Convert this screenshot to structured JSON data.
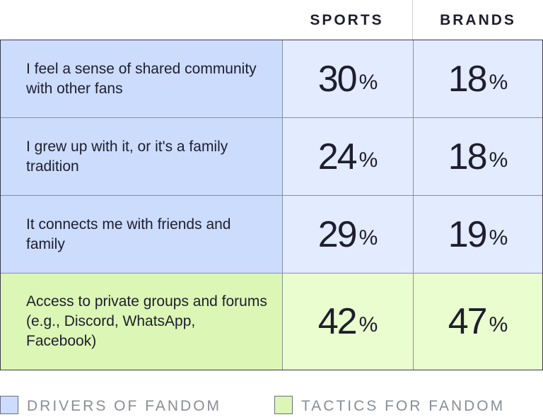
{
  "chart_data": {
    "type": "table",
    "columns": [
      "SPORTS",
      "BRANDS"
    ],
    "value_suffix": "%",
    "rows": [
      {
        "label": "I feel a sense of shared community with other fans",
        "sports": 30,
        "brands": 18,
        "group": "drivers"
      },
      {
        "label": "I grew up with it, or it's a family tradition",
        "sports": 24,
        "brands": 18,
        "group": "drivers"
      },
      {
        "label": "It connects me with friends and family",
        "sports": 29,
        "brands": 19,
        "group": "drivers"
      },
      {
        "label": "Access to private groups and forums (e.g., Discord, WhatsApp, Facebook)",
        "sports": 42,
        "brands": 47,
        "group": "tactics"
      }
    ],
    "legend": [
      {
        "key": "drivers",
        "label": "DRIVERS OF FANDOM",
        "color": "#cbdcfd"
      },
      {
        "key": "tactics",
        "label": "TACTICS FOR FANDOM",
        "color": "#dcf6b5"
      }
    ]
  }
}
